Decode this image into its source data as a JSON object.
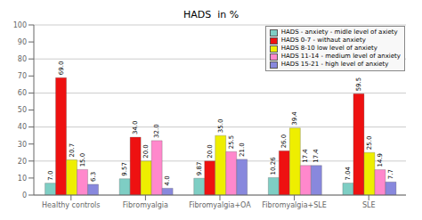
{
  "chart_data": {
    "type": "bar",
    "title": "HADS  in %",
    "categories": [
      "Healthy controls",
      "Fibromyalgia",
      "Fibromyalgia+OA",
      "Fibromyalgia+SLE",
      "SLE"
    ],
    "series": [
      {
        "name": "HADS - anxiety - midle level of axiety",
        "color": "#7ECEC4",
        "values": [
          7.0,
          9.57,
          9.87,
          10.26,
          7.04
        ],
        "value_labels": [
          "7.0",
          "9.57",
          "9.87",
          "10.26",
          "7.04"
        ]
      },
      {
        "name": "HADS 0-7 - withaut anxiety",
        "color": "#EE1111",
        "values": [
          69.0,
          34.0,
          20.0,
          26.0,
          59.5
        ],
        "value_labels": [
          "69.0",
          "34.0",
          "20.0",
          "26.0",
          "59.5"
        ]
      },
      {
        "name": "HADS 8-10 low level of anxiety",
        "color": "#EEEE00",
        "values": [
          20.7,
          20.0,
          35.0,
          39.4,
          25.0
        ],
        "value_labels": [
          "20.7",
          "20.0",
          "35.0",
          "39.4",
          "25.0"
        ]
      },
      {
        "name": "HADS 11-14 - medium level of anxiety",
        "color": "#FF88CC",
        "values": [
          15.0,
          32.0,
          25.5,
          17.4,
          14.9
        ],
        "value_labels": [
          "15.0",
          "32.0",
          "25.5",
          "17.4",
          "14.9"
        ]
      },
      {
        "name": "HADS 15-21 - high level of anxiety",
        "color": "#8888DD",
        "values": [
          6.3,
          4.0,
          21.0,
          17.4,
          7.7
        ],
        "value_labels": [
          "6.3",
          "4.0",
          "21.0",
          "17.4",
          "7.7"
        ]
      }
    ],
    "ylim": [
      0,
      100
    ],
    "yticks": [
      0,
      10,
      20,
      30,
      40,
      50,
      60,
      70,
      80,
      90,
      100
    ],
    "grid": true,
    "legend": "upper right",
    "data_labels": true
  }
}
